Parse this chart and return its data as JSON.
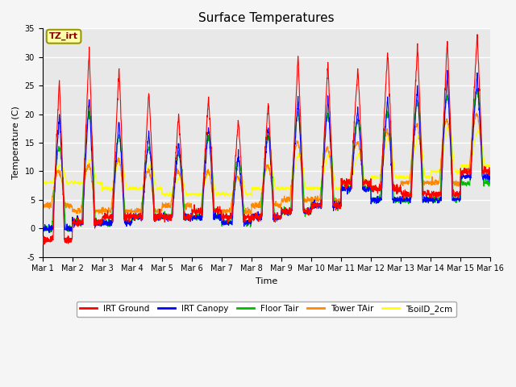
{
  "title": "Surface Temperatures",
  "xlabel": "Time",
  "ylabel": "Temperature (C)",
  "ylim": [
    -5,
    35
  ],
  "xlim": [
    0,
    15
  ],
  "xtick_labels": [
    "Mar 1",
    "Mar 2",
    "Mar 3",
    "Mar 4",
    "Mar 5",
    "Mar 6",
    "Mar 7",
    "Mar 8",
    "Mar 9",
    "Mar 10",
    "Mar 11",
    "Mar 12",
    "Mar 13",
    "Mar 14",
    "Mar 15",
    "Mar 16"
  ],
  "xtick_positions": [
    0,
    1,
    2,
    3,
    4,
    5,
    6,
    7,
    8,
    9,
    10,
    11,
    12,
    13,
    14,
    15
  ],
  "ytick_positions": [
    -5,
    0,
    5,
    10,
    15,
    20,
    25,
    30,
    35
  ],
  "colors": {
    "IRT Ground": "#ff0000",
    "IRT Canopy": "#0000ff",
    "Floor Tair": "#00bb00",
    "Tower TAir": "#ff8800",
    "TsoilD_2cm": "#ffff00"
  },
  "annotation_text": "TZ_irt",
  "bg_color": "#e8e8e8",
  "fig_bg_color": "#f5f5f5",
  "title_fontsize": 11,
  "n_days": 15,
  "pts_per_day": 144
}
